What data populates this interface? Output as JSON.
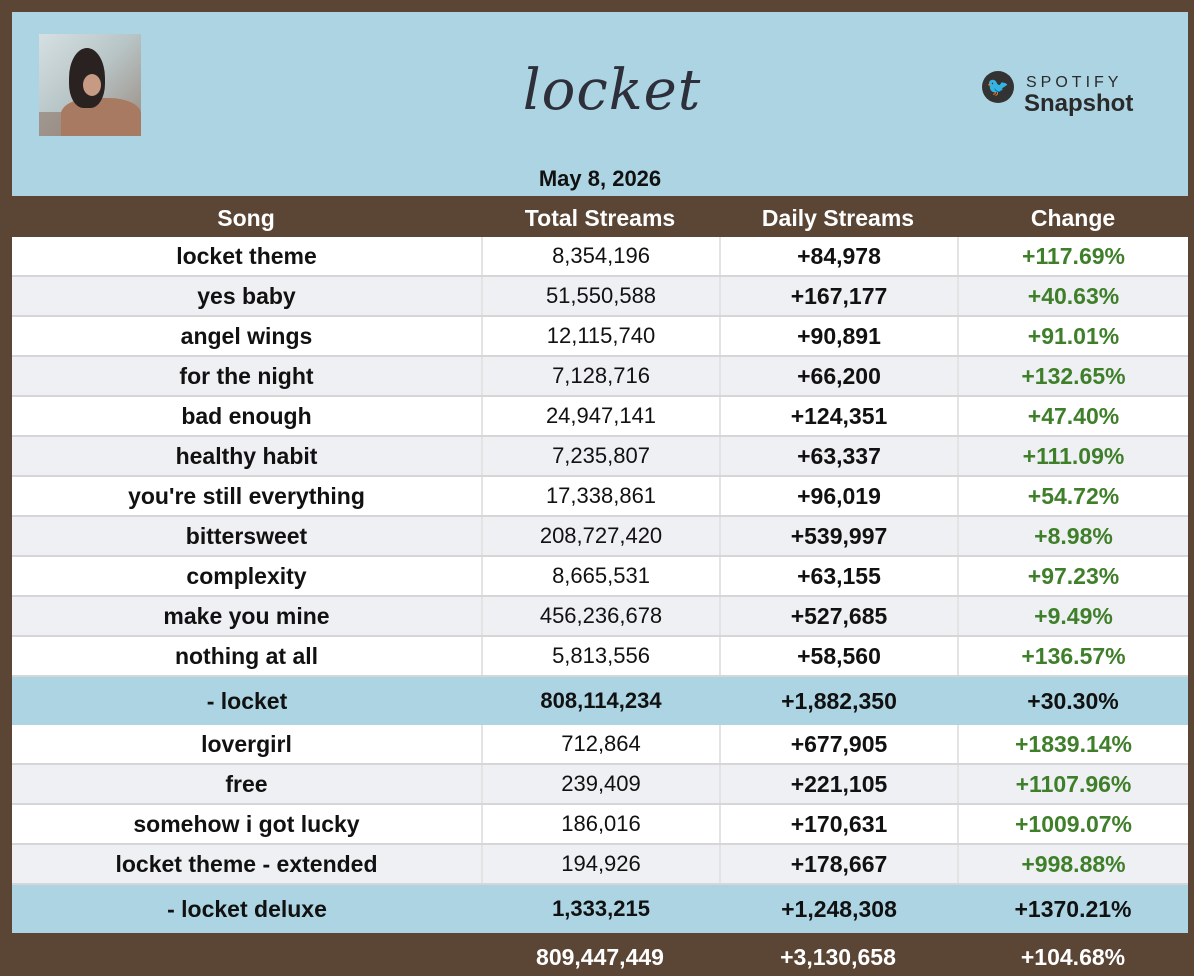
{
  "header": {
    "album_title": "locket",
    "brand_line1": "SPOTIFY",
    "brand_line2": "Snapshot",
    "date": "May 8, 2026"
  },
  "columns": [
    "Song",
    "Total Streams",
    "Daily Streams",
    "Change"
  ],
  "section1": [
    {
      "song": "locket theme",
      "total": "8,354,196",
      "daily": "+84,978",
      "change": "+117.69%"
    },
    {
      "song": "yes baby",
      "total": "51,550,588",
      "daily": "+167,177",
      "change": "+40.63%"
    },
    {
      "song": "angel wings",
      "total": "12,115,740",
      "daily": "+90,891",
      "change": "+91.01%"
    },
    {
      "song": "for the night",
      "total": "7,128,716",
      "daily": "+66,200",
      "change": "+132.65%"
    },
    {
      "song": "bad enough",
      "total": "24,947,141",
      "daily": "+124,351",
      "change": "+47.40%"
    },
    {
      "song": "healthy habit",
      "total": "7,235,807",
      "daily": "+63,337",
      "change": "+111.09%"
    },
    {
      "song": "you're still everything",
      "total": "17,338,861",
      "daily": "+96,019",
      "change": "+54.72%"
    },
    {
      "song": "bittersweet",
      "total": "208,727,420",
      "daily": "+539,997",
      "change": "+8.98%"
    },
    {
      "song": "complexity",
      "total": "8,665,531",
      "daily": "+63,155",
      "change": "+97.23%"
    },
    {
      "song": "make you mine",
      "total": "456,236,678",
      "daily": "+527,685",
      "change": "+9.49%"
    },
    {
      "song": "nothing at all",
      "total": "5,813,556",
      "daily": "+58,560",
      "change": "+136.57%"
    }
  ],
  "subtotal1": {
    "song": "-   locket",
    "total": "808,114,234",
    "daily": "+1,882,350",
    "change": "+30.30%"
  },
  "section2": [
    {
      "song": "lovergirl",
      "total": "712,864",
      "daily": "+677,905",
      "change": "+1839.14%"
    },
    {
      "song": "free",
      "total": "239,409",
      "daily": "+221,105",
      "change": "+1107.96%"
    },
    {
      "song": "somehow i got lucky",
      "total": "186,016",
      "daily": "+170,631",
      "change": "+1009.07%"
    },
    {
      "song": "locket theme - extended",
      "total": "194,926",
      "daily": "+178,667",
      "change": "+998.88%"
    }
  ],
  "subtotal2": {
    "song": "-   locket deluxe",
    "total": "1,333,215",
    "daily": "+1,248,308",
    "change": "+1370.21%"
  },
  "grand_total": {
    "total": "809,447,449",
    "daily": "+3,130,658",
    "change": "+104.68%"
  },
  "colors": {
    "banner": "#acd4e3",
    "frame": "#5b4535",
    "positive": "#3f7f2a",
    "row_alt": "#eef0f4"
  },
  "icons": {
    "brand": "twitter-bird-icon"
  }
}
